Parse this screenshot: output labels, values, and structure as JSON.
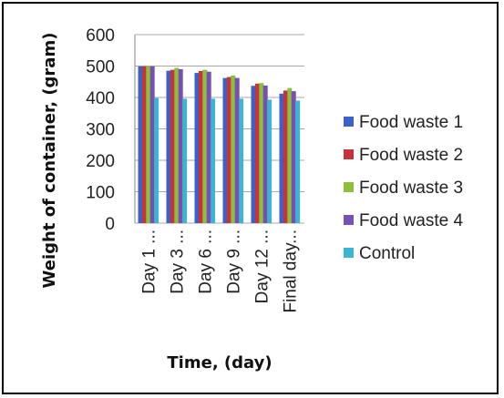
{
  "chart_data": {
    "type": "bar",
    "title": "",
    "xlabel": "Time, (day)",
    "ylabel": "Weight of container, (gram)",
    "ylim": [
      0,
      600
    ],
    "yticks": [
      "0",
      "100",
      "200",
      "300",
      "400",
      "500",
      "600"
    ],
    "categories": [
      "Day 1 ...",
      "Day 3 ...",
      "Day 6 ...",
      "Day 9 ...",
      "Day 12 ...",
      "Final day..."
    ],
    "legend_position": "right",
    "series": [
      {
        "name": "Food waste 1",
        "color": "#3a62c8",
        "values": [
          499,
          485,
          478,
          462,
          437,
          412
        ]
      },
      {
        "name": "Food waste 2",
        "color": "#c8323a",
        "values": [
          499,
          488,
          484,
          465,
          444,
          422
        ]
      },
      {
        "name": "Food waste 3",
        "color": "#8cbf3a",
        "values": [
          499,
          494,
          488,
          470,
          446,
          430
        ]
      },
      {
        "name": "Food waste 4",
        "color": "#7850b4",
        "values": [
          499,
          490,
          482,
          462,
          438,
          420
        ]
      },
      {
        "name": "Control",
        "color": "#3cb4d2",
        "values": [
          398,
          396,
          396,
          396,
          393,
          390
        ]
      }
    ]
  }
}
